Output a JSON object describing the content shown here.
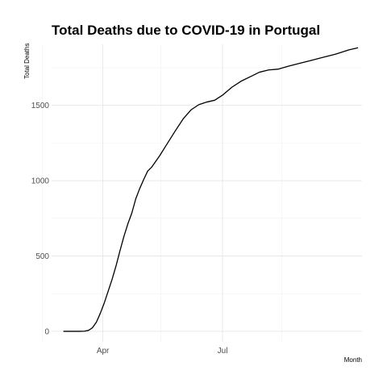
{
  "chart_data": {
    "type": "line",
    "title": "Total Deaths due to COVID-19 in Portugal",
    "xlabel": "Month",
    "ylabel": "Total Deaths",
    "x_axis": {
      "type": "date",
      "range": [
        "2020-02-22",
        "2020-10-15"
      ],
      "ticks": [
        {
          "date": "2020-04-01",
          "label": "Apr"
        },
        {
          "date": "2020-07-01",
          "label": "Jul"
        }
      ],
      "minor_gridlines": [
        "2020-02-15",
        "2020-05-15",
        "2020-08-15"
      ]
    },
    "y_axis": {
      "range": [
        -70,
        1905
      ],
      "ticks": [
        0,
        500,
        1000,
        1500
      ],
      "minor_gridlines": [
        250,
        750,
        1250,
        1750
      ]
    },
    "grid": true,
    "legend": "none",
    "series": [
      {
        "x": [
          "2020-03-02",
          "2020-03-10",
          "2020-03-15",
          "2020-03-18",
          "2020-03-21",
          "2020-03-24",
          "2020-03-27",
          "2020-03-30",
          "2020-04-02",
          "2020-04-05",
          "2020-04-08",
          "2020-04-11",
          "2020-04-14",
          "2020-04-17",
          "2020-04-20",
          "2020-04-23",
          "2020-04-26",
          "2020-04-29",
          "2020-05-02",
          "2020-05-05",
          "2020-05-08",
          "2020-05-11",
          "2020-05-14",
          "2020-05-20",
          "2020-05-26",
          "2020-06-01",
          "2020-06-07",
          "2020-06-13",
          "2020-06-19",
          "2020-06-25",
          "2020-07-01",
          "2020-07-08",
          "2020-07-15",
          "2020-07-22",
          "2020-07-29",
          "2020-08-05",
          "2020-08-12",
          "2020-08-20",
          "2020-08-28",
          "2020-09-05",
          "2020-09-15",
          "2020-09-25",
          "2020-10-05",
          "2020-10-12"
        ],
        "y": [
          0,
          0,
          0,
          1,
          6,
          23,
          60,
          119,
          187,
          266,
          345,
          435,
          535,
          630,
          714,
          785,
          880,
          948,
          1007,
          1063,
          1089,
          1126,
          1163,
          1247,
          1330,
          1410,
          1470,
          1505,
          1522,
          1534,
          1568,
          1620,
          1660,
          1690,
          1720,
          1735,
          1740,
          1760,
          1778,
          1795,
          1818,
          1840,
          1868,
          1882
        ]
      }
    ]
  }
}
